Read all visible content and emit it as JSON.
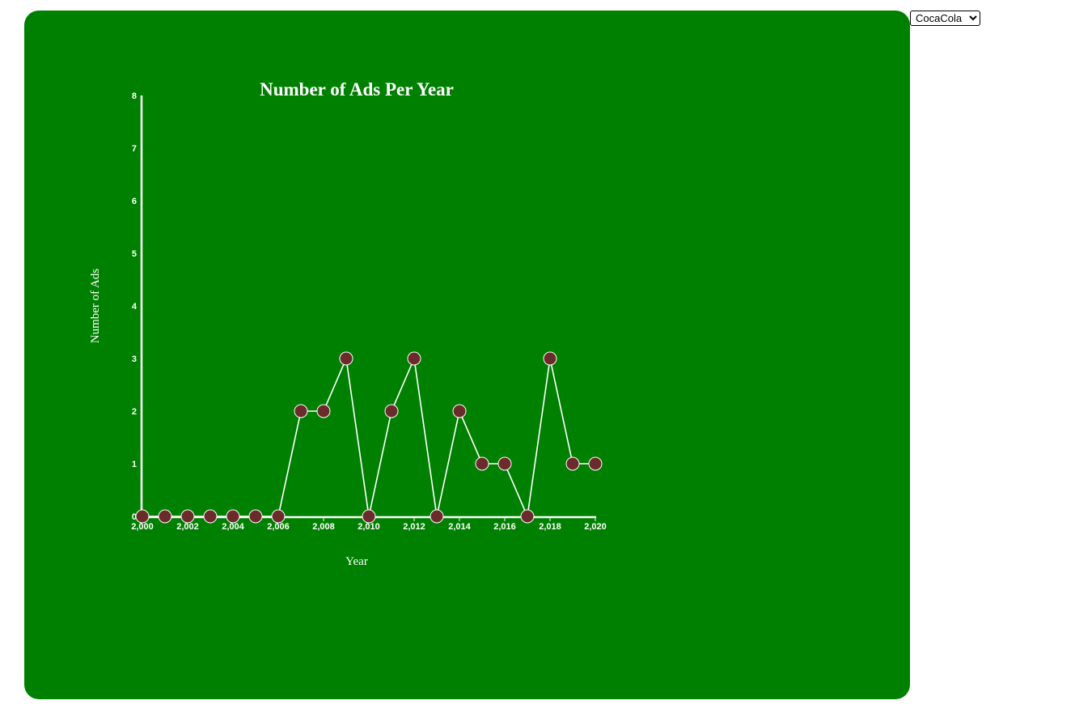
{
  "controls": {
    "brand_select": {
      "selected": "CocaCola",
      "options": [
        "CocaCola"
      ]
    }
  },
  "colors": {
    "panel": "#008000",
    "line": "#ffffff",
    "point_fill": "#6b2b2b",
    "point_stroke": "#ffffff"
  },
  "chart_data": {
    "type": "line",
    "title": "Number of Ads Per Year",
    "xlabel": "Year",
    "ylabel": "Number of Ads",
    "x": [
      2000,
      2001,
      2002,
      2003,
      2004,
      2005,
      2006,
      2007,
      2008,
      2009,
      2010,
      2011,
      2012,
      2013,
      2014,
      2015,
      2016,
      2017,
      2018,
      2019,
      2020
    ],
    "series": [
      {
        "values": [
          0,
          0,
          0,
          0,
          0,
          0,
          0,
          2,
          2,
          3,
          0,
          2,
          3,
          0,
          2,
          1,
          1,
          0,
          3,
          1,
          1
        ]
      }
    ],
    "xlim": [
      2000,
      2020
    ],
    "ylim": [
      0,
      8
    ],
    "xticks": [
      "2,000",
      "2,002",
      "2,004",
      "2,006",
      "2,008",
      "2,010",
      "2,012",
      "2,014",
      "2,016",
      "2,018",
      "2,020"
    ],
    "yticks": [
      "0",
      "1",
      "2",
      "3",
      "4",
      "5",
      "6",
      "7",
      "8"
    ],
    "grid": false,
    "legend": "none"
  }
}
